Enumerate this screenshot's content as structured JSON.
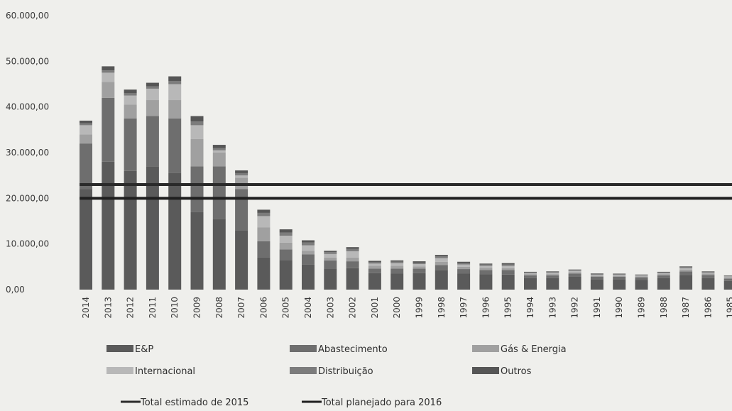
{
  "chart_data": {
    "type": "bar",
    "stacked": true,
    "title": "",
    "xlabel": "",
    "ylabel": "",
    "ylim": [
      0,
      60000
    ],
    "yticks": [
      "0,00",
      "10.000,00",
      "20.000,00",
      "30.000,00",
      "40.000,00",
      "50.000,00",
      "60.000,00"
    ],
    "ytick_values": [
      0,
      10000,
      20000,
      30000,
      40000,
      50000,
      60000
    ],
    "grid": false,
    "legend_position": "bottom",
    "categories": [
      "2014",
      "2013",
      "2012",
      "2011",
      "2010",
      "2009",
      "2008",
      "2007",
      "2006",
      "2005",
      "2004",
      "2003",
      "2002",
      "2001",
      "2000",
      "1999",
      "1998",
      "1997",
      "1996",
      "1995",
      "1994",
      "1993",
      "1992",
      "1991",
      "1990",
      "1989",
      "1988",
      "1987",
      "1986",
      "1985"
    ],
    "series": [
      {
        "name": "E&P",
        "color": "#5a5a5a",
        "values": [
          22000,
          28000,
          26000,
          27000,
          25500,
          17000,
          15500,
          13000,
          7000,
          6500,
          5500,
          4600,
          4700,
          3600,
          3500,
          3600,
          4300,
          3500,
          3400,
          3300,
          2500,
          2500,
          2800,
          2300,
          2300,
          2100,
          2500,
          3200,
          2500,
          1900
        ]
      },
      {
        "name": "Abastecimento",
        "color": "#6e6e6e",
        "values": [
          10000,
          14000,
          11500,
          11000,
          12000,
          10000,
          11500,
          9000,
          3600,
          2300,
          2200,
          1800,
          1500,
          1000,
          1100,
          1000,
          1100,
          1000,
          900,
          1000,
          600,
          600,
          700,
          550,
          500,
          600,
          600,
          800,
          700,
          500
        ]
      },
      {
        "name": "Gás & Energia",
        "color": "#a0a0a0",
        "values": [
          2000,
          3500,
          3000,
          3500,
          4000,
          6000,
          3000,
          2500,
          3000,
          1500,
          800,
          600,
          800,
          600,
          600,
          500,
          700,
          500,
          500,
          400,
          300,
          300,
          300,
          200,
          200,
          200,
          300,
          400,
          300,
          300
        ]
      },
      {
        "name": "Internacional",
        "color": "#b8b8b8",
        "values": [
          2000,
          2000,
          2000,
          2500,
          3500,
          3000,
          500,
          500,
          2500,
          1500,
          1200,
          800,
          1400,
          500,
          600,
          500,
          800,
          500,
          400,
          500,
          200,
          300,
          300,
          200,
          200,
          200,
          200,
          300,
          200,
          200
        ]
      },
      {
        "name": "Distribuição",
        "color": "#7c7c7c",
        "values": [
          400,
          500,
          500,
          500,
          700,
          800,
          500,
          500,
          700,
          700,
          600,
          400,
          500,
          300,
          300,
          300,
          400,
          300,
          300,
          300,
          200,
          200,
          200,
          200,
          200,
          100,
          200,
          300,
          200,
          100
        ]
      },
      {
        "name": "Outros",
        "color": "#565656",
        "values": [
          600,
          900,
          800,
          800,
          1000,
          1200,
          700,
          600,
          700,
          700,
          500,
          300,
          400,
          300,
          300,
          300,
          300,
          300,
          200,
          300,
          100,
          100,
          100,
          100,
          100,
          100,
          100,
          100,
          100,
          100
        ]
      }
    ],
    "reference_lines": [
      {
        "name": "Total estimado de 2015",
        "value": 23000,
        "color": "#2a2a2a"
      },
      {
        "name": "Total planejado para 2016",
        "value": 20000,
        "color": "#1f1f1f"
      }
    ]
  }
}
